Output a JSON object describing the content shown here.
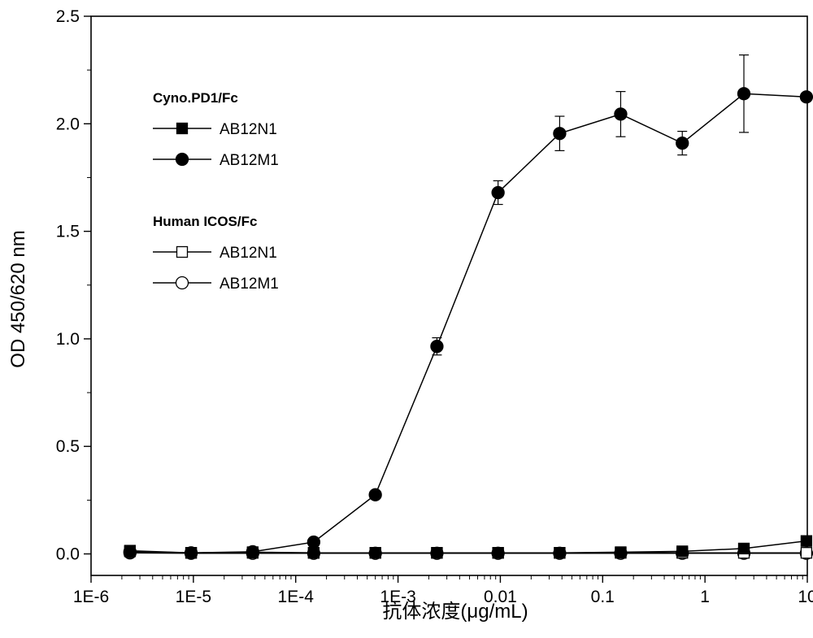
{
  "chart_data": {
    "type": "line",
    "title": "",
    "xlabel": "抗体浓度(μg/mL)",
    "ylabel": "OD 450/620 nm",
    "xscale": "log",
    "xlim": [
      1e-06,
      10
    ],
    "ylim": [
      -0.1,
      2.5
    ],
    "x_ticks": [
      {
        "value": 1e-06,
        "label": "1E-6"
      },
      {
        "value": 1e-05,
        "label": "1E-5"
      },
      {
        "value": 0.0001,
        "label": "1E-4"
      },
      {
        "value": 0.001,
        "label": "1E-3"
      },
      {
        "value": 0.01,
        "label": "0.01"
      },
      {
        "value": 0.1,
        "label": "0.1"
      },
      {
        "value": 1,
        "label": "1"
      },
      {
        "value": 10,
        "label": "10"
      }
    ],
    "y_ticks": [
      {
        "value": 0.0,
        "label": "0.0"
      },
      {
        "value": 0.5,
        "label": "0.5"
      },
      {
        "value": 1.0,
        "label": "1.0"
      },
      {
        "value": 1.5,
        "label": "1.5"
      },
      {
        "value": 2.0,
        "label": "2.0"
      },
      {
        "value": 2.5,
        "label": "2.5"
      }
    ],
    "grid": false,
    "legend_position": "top-left",
    "x": [
      2.4e-06,
      9.5e-06,
      3.8e-05,
      0.00015,
      0.0006,
      0.0024,
      0.0095,
      0.038,
      0.15,
      0.6,
      2.4,
      9.8
    ],
    "legend_groups": [
      {
        "title": "Cyno.PD1/Fc",
        "series_index": [
          0,
          1
        ]
      },
      {
        "title": "Human ICOS/Fc",
        "series_index": [
          2,
          3
        ]
      }
    ],
    "series": [
      {
        "name": "AB12N1",
        "marker": "square",
        "filled": true,
        "values": [
          0.015,
          0.005,
          0.008,
          0.005,
          0.005,
          0.005,
          0.005,
          0.005,
          0.008,
          0.012,
          0.025,
          0.06
        ],
        "errors": [
          0,
          0,
          0,
          0,
          0,
          0,
          0,
          0,
          0,
          0,
          0,
          0
        ]
      },
      {
        "name": "AB12M1",
        "marker": "circle",
        "filled": true,
        "values": [
          0.01,
          0.005,
          0.01,
          0.055,
          0.275,
          0.965,
          1.68,
          1.955,
          2.045,
          1.91,
          2.14,
          2.125
        ],
        "errors": [
          0,
          0,
          0,
          0,
          0,
          0.04,
          0.055,
          0.08,
          0.105,
          0.055,
          0.18,
          0
        ]
      },
      {
        "name": "AB12N1",
        "marker": "square",
        "filled": false,
        "values": [
          0.012,
          0.005,
          0.005,
          0.005,
          0.005,
          0.005,
          0.005,
          0.005,
          0.005,
          0.005,
          0.005,
          0.005
        ],
        "errors": [
          0,
          0,
          0,
          0,
          0,
          0,
          0,
          0,
          0,
          0,
          0,
          0
        ]
      },
      {
        "name": "AB12M1",
        "marker": "circle",
        "filled": false,
        "values": [
          0.005,
          0.003,
          0.003,
          0.003,
          0.003,
          0.003,
          0.003,
          0.003,
          0.003,
          0.003,
          0.003,
          0.003
        ],
        "errors": [
          0,
          0,
          0,
          0,
          0,
          0,
          0,
          0,
          0,
          0,
          0,
          0
        ]
      }
    ]
  }
}
